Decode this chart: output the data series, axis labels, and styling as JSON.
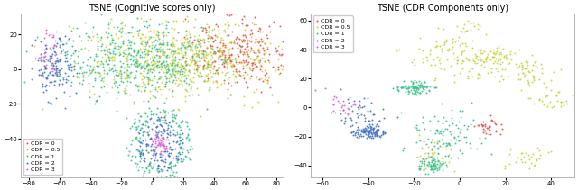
{
  "title_left": "TSNE (Cognitive scores only)",
  "title_right": "TSNE (CDR Components only)",
  "cdr_labels": [
    "CDR = 0",
    "CDR = 0.5",
    "CDR = 1",
    "CDR = 2",
    "CDR = 3"
  ],
  "cdr_colors": [
    "#e8534a",
    "#c8d43a",
    "#3ec48c",
    "#4472c4",
    "#d966d6"
  ],
  "left_xlim": [
    -85,
    85
  ],
  "left_ylim": [
    -62,
    32
  ],
  "right_xlim": [
    -65,
    50
  ],
  "right_ylim": [
    -48,
    65
  ],
  "marker_size": 2,
  "seed": 42,
  "left_xticks": [
    -80,
    -60,
    -40,
    -20,
    0,
    20,
    40,
    60,
    80
  ],
  "left_yticks": [
    -40,
    -20,
    0,
    20
  ],
  "right_xticks": [
    -60,
    -40,
    -20,
    0,
    20,
    40
  ],
  "right_yticks": [
    -40,
    -20,
    0,
    20,
    40,
    60
  ]
}
